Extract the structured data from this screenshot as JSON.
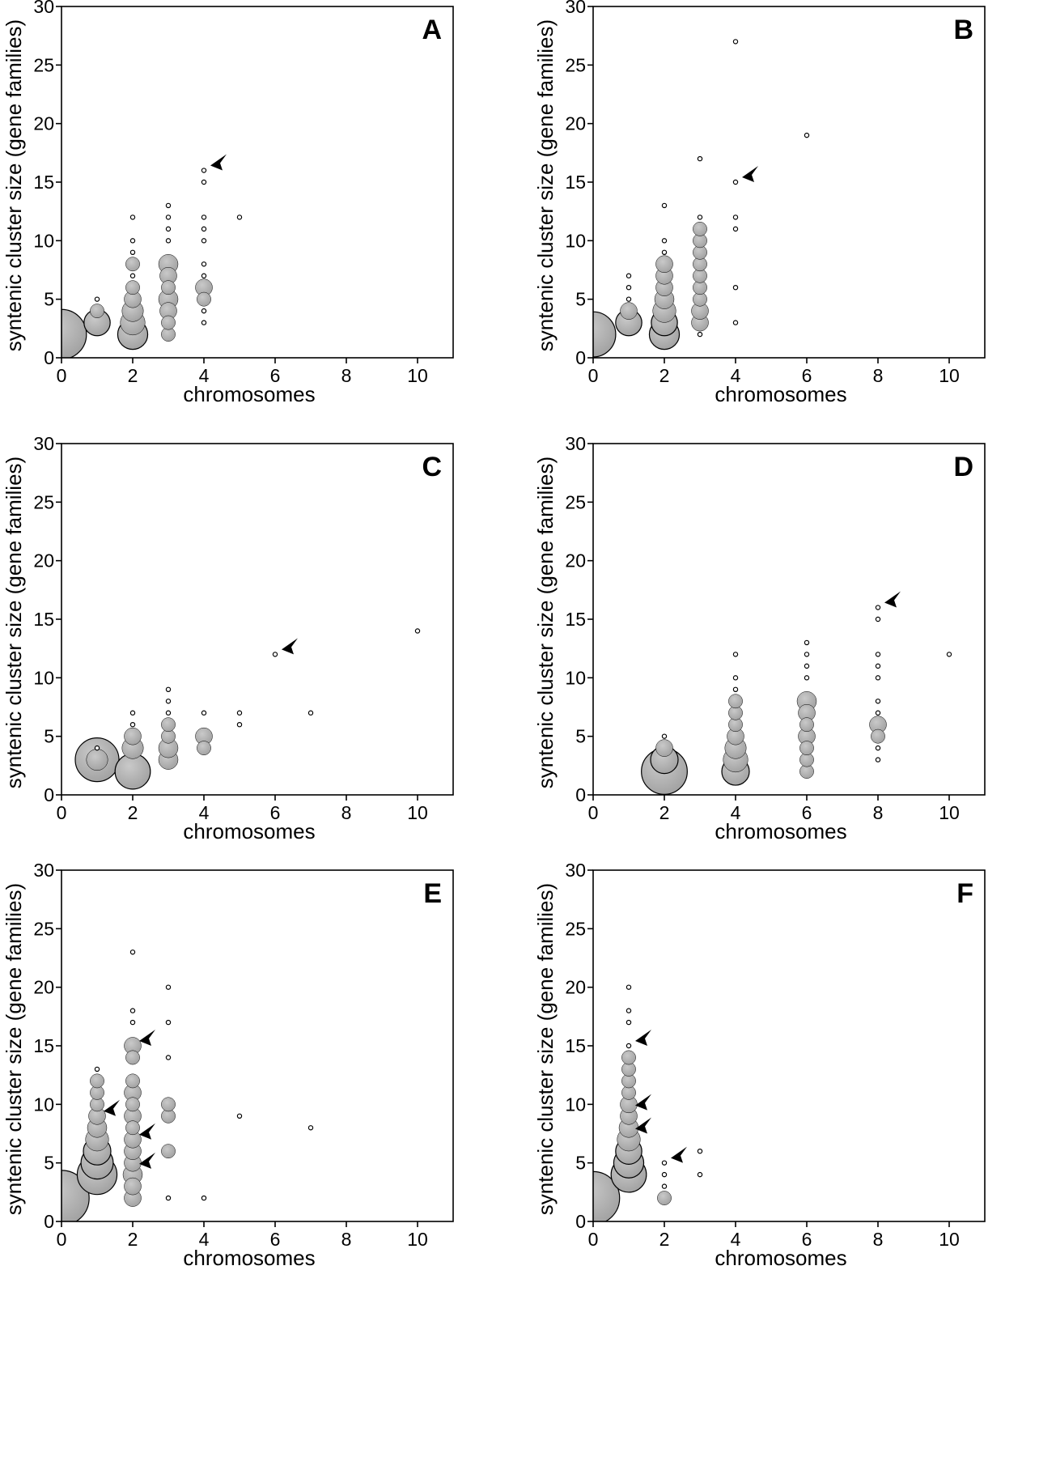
{
  "style": {
    "bubble_fill": "#a3a3a3",
    "point_stroke": "#000000"
  },
  "chart_data": [
    {
      "panel": "A",
      "type": "scatter",
      "xlabel": "chromosomes",
      "ylabel": "syntenic cluster size (gene families)",
      "xlim": [
        0,
        11
      ],
      "ylim": [
        0,
        30
      ],
      "xticks": [
        0,
        2,
        4,
        6,
        8,
        10
      ],
      "yticks": [
        0,
        5,
        10,
        15,
        20,
        25,
        30
      ],
      "points": [
        [
          0,
          2,
          35
        ],
        [
          1,
          3,
          8
        ],
        [
          1,
          4,
          2
        ],
        [
          1,
          5,
          1
        ],
        [
          2,
          2,
          11
        ],
        [
          2,
          3,
          7
        ],
        [
          2,
          4,
          5
        ],
        [
          2,
          5,
          3
        ],
        [
          2,
          6,
          2
        ],
        [
          2,
          7,
          1
        ],
        [
          2,
          8,
          2
        ],
        [
          2,
          9,
          1
        ],
        [
          2,
          10,
          1
        ],
        [
          2,
          12,
          1
        ],
        [
          3,
          2,
          2
        ],
        [
          3,
          3,
          2
        ],
        [
          3,
          4,
          3
        ],
        [
          3,
          5,
          4
        ],
        [
          3,
          6,
          2
        ],
        [
          3,
          7,
          3
        ],
        [
          3,
          8,
          4
        ],
        [
          3,
          10,
          1
        ],
        [
          3,
          11,
          1
        ],
        [
          3,
          12,
          1
        ],
        [
          3,
          13,
          1
        ],
        [
          4,
          3,
          1
        ],
        [
          4,
          4,
          1
        ],
        [
          4,
          5,
          2
        ],
        [
          4,
          6,
          3
        ],
        [
          4,
          7,
          1
        ],
        [
          4,
          8,
          1
        ],
        [
          4,
          10,
          1
        ],
        [
          4,
          11,
          1
        ],
        [
          4,
          12,
          1
        ],
        [
          4,
          15,
          1
        ],
        [
          4,
          16,
          1
        ],
        [
          5,
          12,
          1
        ]
      ],
      "arrows": [
        [
          4,
          16
        ]
      ]
    },
    {
      "panel": "B",
      "type": "scatter",
      "xlabel": "chromosomes",
      "ylabel": "syntenic cluster size (gene families)",
      "xlim": [
        0,
        11
      ],
      "ylim": [
        0,
        30
      ],
      "xticks": [
        0,
        2,
        4,
        6,
        8,
        10
      ],
      "yticks": [
        0,
        5,
        10,
        15,
        20,
        25,
        30
      ],
      "points": [
        [
          0,
          2,
          28
        ],
        [
          1,
          3,
          8
        ],
        [
          1,
          4,
          3
        ],
        [
          1,
          5,
          1
        ],
        [
          1,
          6,
          1
        ],
        [
          1,
          7,
          1
        ],
        [
          2,
          2,
          11
        ],
        [
          2,
          3,
          8
        ],
        [
          2,
          4,
          6
        ],
        [
          2,
          5,
          4
        ],
        [
          2,
          6,
          3
        ],
        [
          2,
          7,
          3
        ],
        [
          2,
          8,
          3
        ],
        [
          2,
          9,
          1
        ],
        [
          2,
          10,
          1
        ],
        [
          2,
          13,
          1
        ],
        [
          3,
          2,
          1
        ],
        [
          3,
          3,
          3
        ],
        [
          3,
          4,
          3
        ],
        [
          3,
          5,
          2
        ],
        [
          3,
          6,
          2
        ],
        [
          3,
          7,
          2
        ],
        [
          3,
          8,
          2
        ],
        [
          3,
          9,
          2
        ],
        [
          3,
          10,
          2
        ],
        [
          3,
          11,
          2
        ],
        [
          3,
          12,
          1
        ],
        [
          3,
          17,
          1
        ],
        [
          4,
          3,
          1
        ],
        [
          4,
          6,
          1
        ],
        [
          4,
          11,
          1
        ],
        [
          4,
          12,
          1
        ],
        [
          4,
          15,
          1
        ],
        [
          4,
          27,
          1
        ],
        [
          6,
          19,
          1
        ]
      ],
      "arrows": [
        [
          4,
          15
        ]
      ]
    },
    {
      "panel": "C",
      "type": "scatter",
      "xlabel": "chromosomes",
      "ylabel": "syntenic cluster size (gene families)",
      "xlim": [
        0,
        11
      ],
      "ylim": [
        0,
        30
      ],
      "xticks": [
        0,
        2,
        4,
        6,
        8,
        10
      ],
      "yticks": [
        0,
        5,
        10,
        15,
        20,
        25,
        30
      ],
      "points": [
        [
          1,
          3,
          26
        ],
        [
          1,
          3,
          5
        ],
        [
          1,
          4,
          1
        ],
        [
          2,
          2,
          16
        ],
        [
          2,
          4,
          5
        ],
        [
          2,
          5,
          3
        ],
        [
          2,
          6,
          1
        ],
        [
          2,
          7,
          1
        ],
        [
          3,
          3,
          4
        ],
        [
          3,
          4,
          4
        ],
        [
          3,
          5,
          2
        ],
        [
          3,
          6,
          2
        ],
        [
          3,
          7,
          1
        ],
        [
          3,
          8,
          1
        ],
        [
          3,
          9,
          1
        ],
        [
          4,
          4,
          2
        ],
        [
          4,
          5,
          3
        ],
        [
          4,
          7,
          1
        ],
        [
          5,
          6,
          1
        ],
        [
          5,
          7,
          1
        ],
        [
          6,
          12,
          1
        ],
        [
          7,
          7,
          1
        ],
        [
          10,
          14,
          1
        ]
      ],
      "arrows": [
        [
          6,
          12
        ]
      ]
    },
    {
      "panel": "D",
      "type": "scatter",
      "xlabel": "chromosomes",
      "ylabel": "syntenic cluster size (gene families)",
      "xlim": [
        0,
        11
      ],
      "ylim": [
        0,
        30
      ],
      "xticks": [
        0,
        2,
        4,
        6,
        8,
        10
      ],
      "yticks": [
        0,
        5,
        10,
        15,
        20,
        25,
        30
      ],
      "points": [
        [
          2,
          2,
          29
        ],
        [
          2,
          3,
          9
        ],
        [
          2,
          4,
          3
        ],
        [
          2,
          5,
          1
        ],
        [
          4,
          2,
          9
        ],
        [
          4,
          3,
          7
        ],
        [
          4,
          4,
          5
        ],
        [
          4,
          5,
          3
        ],
        [
          4,
          6,
          2
        ],
        [
          4,
          7,
          2
        ],
        [
          4,
          8,
          2
        ],
        [
          4,
          9,
          1
        ],
        [
          4,
          10,
          1
        ],
        [
          4,
          12,
          1
        ],
        [
          6,
          2,
          2
        ],
        [
          6,
          3,
          2
        ],
        [
          6,
          4,
          2
        ],
        [
          6,
          5,
          3
        ],
        [
          6,
          6,
          2
        ],
        [
          6,
          7,
          3
        ],
        [
          6,
          8,
          4
        ],
        [
          6,
          10,
          1
        ],
        [
          6,
          11,
          1
        ],
        [
          6,
          12,
          1
        ],
        [
          6,
          13,
          1
        ],
        [
          8,
          3,
          1
        ],
        [
          8,
          4,
          1
        ],
        [
          8,
          5,
          2
        ],
        [
          8,
          6,
          3
        ],
        [
          8,
          7,
          1
        ],
        [
          8,
          8,
          1
        ],
        [
          8,
          10,
          1
        ],
        [
          8,
          11,
          1
        ],
        [
          8,
          12,
          1
        ],
        [
          8,
          15,
          1
        ],
        [
          8,
          16,
          1
        ],
        [
          10,
          12,
          1
        ]
      ],
      "arrows": [
        [
          8,
          16
        ]
      ]
    },
    {
      "panel": "E",
      "type": "scatter",
      "xlabel": "chromosomes",
      "ylabel": "syntenic cluster size (gene families)",
      "xlim": [
        0,
        11
      ],
      "ylim": [
        0,
        30
      ],
      "xticks": [
        0,
        2,
        4,
        6,
        8,
        10
      ],
      "yticks": [
        0,
        5,
        10,
        15,
        20,
        25,
        30
      ],
      "points": [
        [
          0,
          2,
          44
        ],
        [
          1,
          4,
          21
        ],
        [
          1,
          5,
          13
        ],
        [
          1,
          6,
          9
        ],
        [
          1,
          7,
          6
        ],
        [
          1,
          8,
          4
        ],
        [
          1,
          9,
          3
        ],
        [
          1,
          10,
          2
        ],
        [
          1,
          11,
          2
        ],
        [
          1,
          12,
          2
        ],
        [
          1,
          13,
          1
        ],
        [
          2,
          2,
          3
        ],
        [
          2,
          3,
          3
        ],
        [
          2,
          4,
          4
        ],
        [
          2,
          5,
          3
        ],
        [
          2,
          6,
          3
        ],
        [
          2,
          7,
          3
        ],
        [
          2,
          8,
          2
        ],
        [
          2,
          9,
          3
        ],
        [
          2,
          10,
          2
        ],
        [
          2,
          11,
          3
        ],
        [
          2,
          12,
          2
        ],
        [
          2,
          14,
          2
        ],
        [
          2,
          15,
          3
        ],
        [
          2,
          17,
          1
        ],
        [
          2,
          18,
          1
        ],
        [
          2,
          23,
          1
        ],
        [
          3,
          2,
          1
        ],
        [
          3,
          6,
          2
        ],
        [
          3,
          9,
          2
        ],
        [
          3,
          10,
          2
        ],
        [
          3,
          14,
          1
        ],
        [
          3,
          17,
          1
        ],
        [
          3,
          20,
          1
        ],
        [
          4,
          2,
          1
        ],
        [
          5,
          9,
          1
        ],
        [
          7,
          8,
          1
        ]
      ],
      "arrows": [
        [
          1,
          9
        ],
        [
          2,
          7
        ],
        [
          2,
          4.5
        ],
        [
          2,
          15
        ]
      ]
    },
    {
      "panel": "F",
      "type": "scatter",
      "xlabel": "chromosomes",
      "ylabel": "syntenic cluster size (gene families)",
      "xlim": [
        0,
        11
      ],
      "ylim": [
        0,
        30
      ],
      "xticks": [
        0,
        2,
        4,
        6,
        8,
        10
      ],
      "yticks": [
        0,
        5,
        10,
        15,
        20,
        25,
        30
      ],
      "points": [
        [
          0,
          2,
          40
        ],
        [
          1,
          4,
          16
        ],
        [
          1,
          5,
          11
        ],
        [
          1,
          6,
          8
        ],
        [
          1,
          7,
          6
        ],
        [
          1,
          8,
          4
        ],
        [
          1,
          9,
          3
        ],
        [
          1,
          10,
          3
        ],
        [
          1,
          11,
          2
        ],
        [
          1,
          12,
          2
        ],
        [
          1,
          13,
          2
        ],
        [
          1,
          14,
          2
        ],
        [
          1,
          15,
          1
        ],
        [
          1,
          17,
          1
        ],
        [
          1,
          18,
          1
        ],
        [
          1,
          20,
          1
        ],
        [
          2,
          2,
          2
        ],
        [
          2,
          3,
          1
        ],
        [
          2,
          4,
          1
        ],
        [
          2,
          5,
          1
        ],
        [
          3,
          4,
          1
        ],
        [
          3,
          6,
          1
        ]
      ],
      "arrows": [
        [
          1,
          15
        ],
        [
          1,
          9.5
        ],
        [
          1,
          7.5
        ],
        [
          2,
          5
        ]
      ]
    }
  ]
}
